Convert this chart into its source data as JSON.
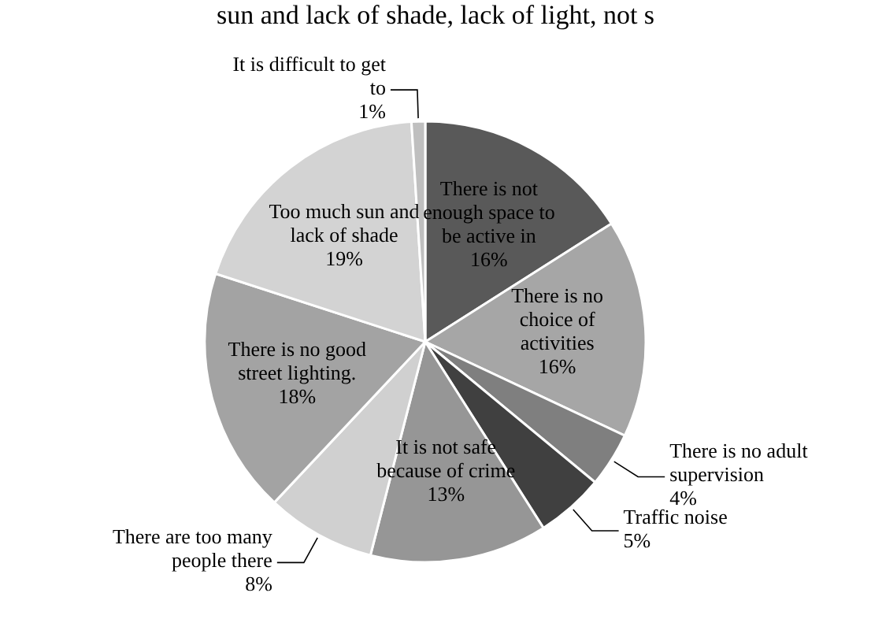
{
  "chart_data": {
    "type": "pie",
    "title": "sun and lack of shade, lack of light, not s",
    "categories": [
      "There is not enough space to be active in",
      "There is no choice of activities",
      "There is no adult supervision",
      "Traffic noise",
      "It is not safe because of crime",
      "There are too many people there",
      "There is no good street lighting.",
      "Too much sun and lack of shade",
      "It is difficult to get to"
    ],
    "values": [
      16,
      16,
      4,
      5,
      13,
      8,
      18,
      19,
      1
    ],
    "value_labels": [
      "16%",
      "16%",
      "4%",
      "5%",
      "13%",
      "8%",
      "18%",
      "19%",
      "1%"
    ],
    "colors": [
      "#595959",
      "#a6a6a6",
      "#7f7f7f",
      "#404040",
      "#969696",
      "#d0d0d0",
      "#a3a3a3",
      "#d3d3d3",
      "#bfbfbf"
    ]
  }
}
